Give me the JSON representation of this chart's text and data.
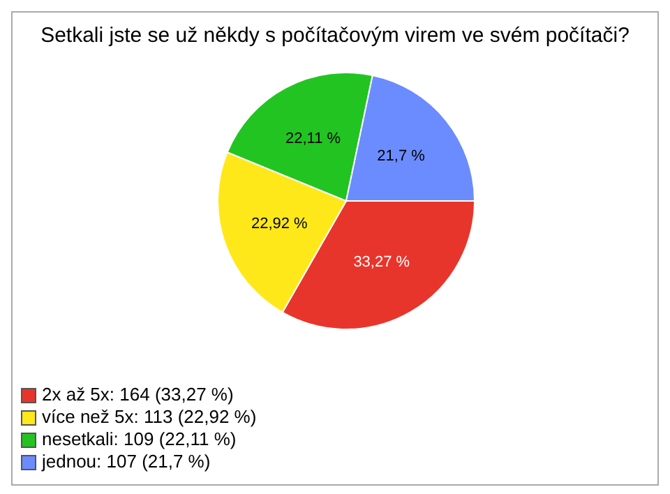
{
  "chart_data": {
    "type": "pie",
    "title": "Setkali jste se už někdy s počítačovým virem ve svém počítači?",
    "categories": [
      "2x až 5x: 164 (33,27 %)",
      "více než 5x: 113 (22,92 %)",
      "nesetkali: 109 (22,11 %)",
      "jednou: 107 (21,7 %)"
    ],
    "values": [
      33.27,
      22.92,
      22.11,
      21.7
    ],
    "value_labels": [
      "33,27 %",
      "22,92 %",
      "22,11 %",
      "21,7 %"
    ],
    "colors": [
      "#e8352b",
      "#ffe81a",
      "#22c422",
      "#6b8cff"
    ],
    "legend": "bottom left"
  }
}
